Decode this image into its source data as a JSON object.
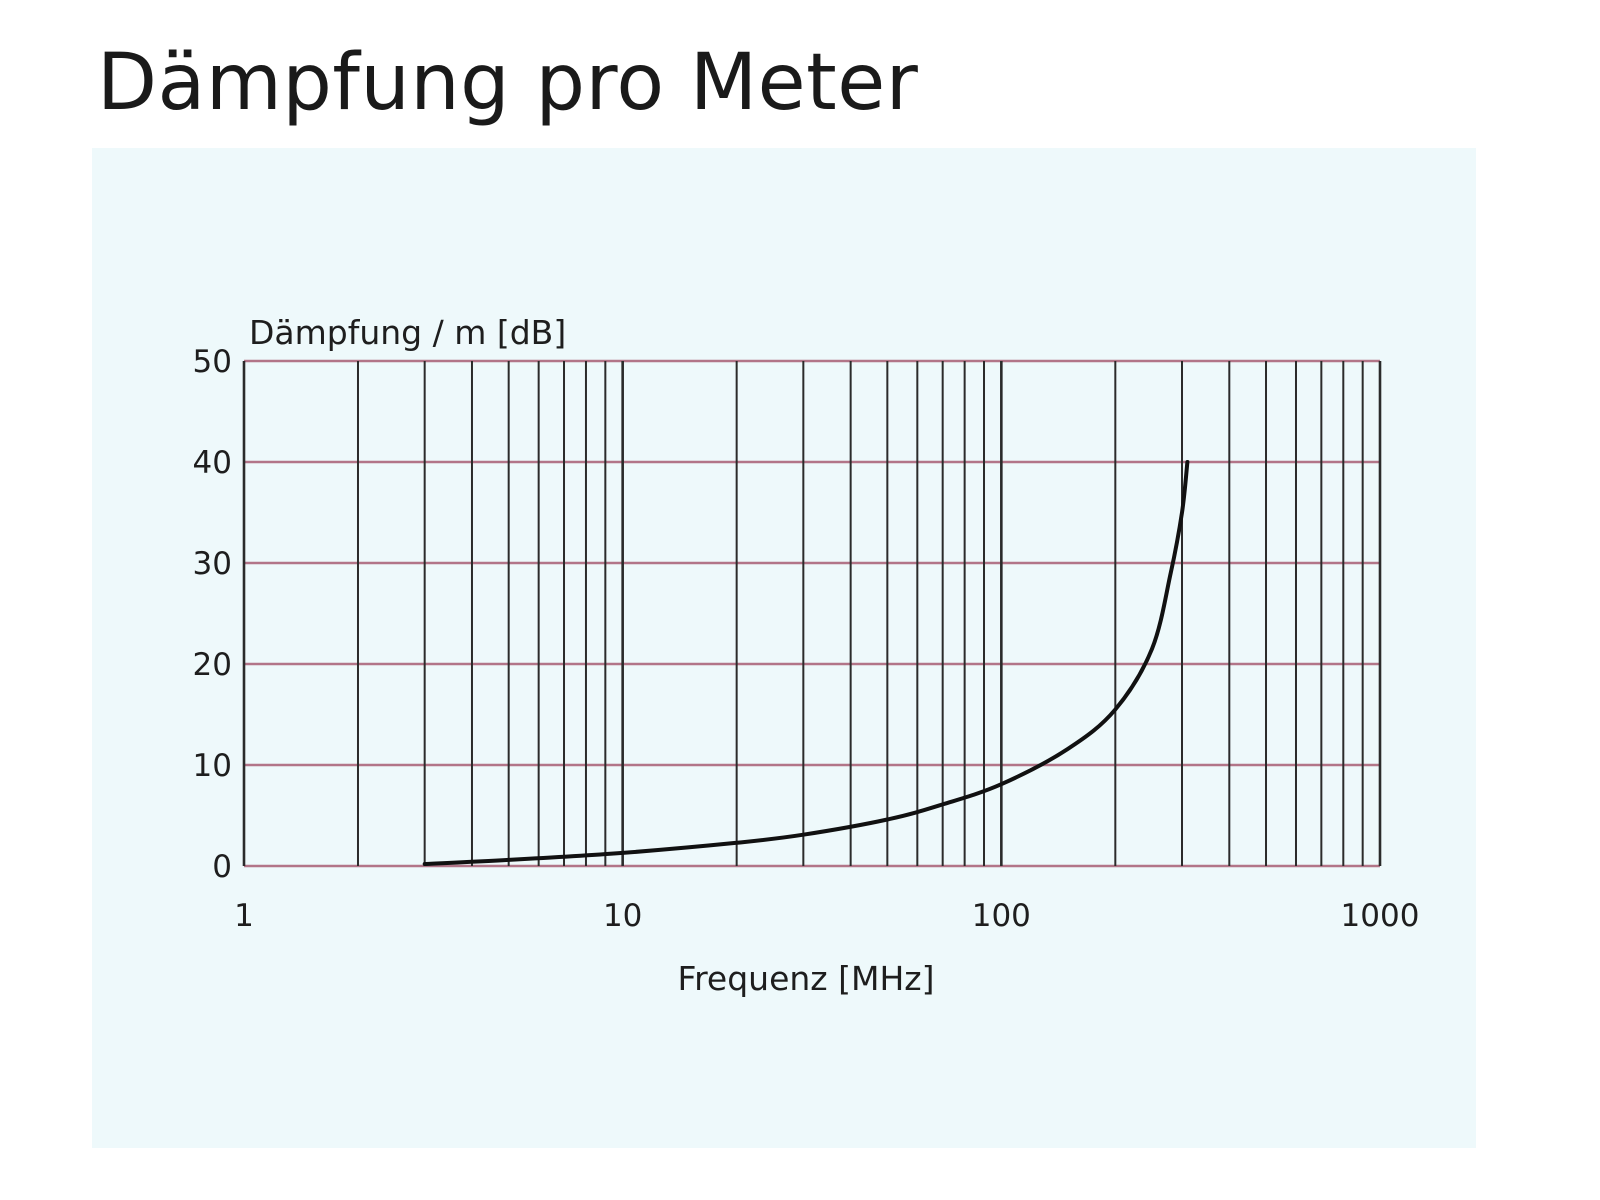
{
  "title": "Dämpfung pro Meter",
  "chart_data": {
    "type": "line",
    "xlabel": "Frequenz [MHz]",
    "ylabel": "Dämpfung / m [dB]",
    "x_scale": "log",
    "xlim": [
      1,
      1000
    ],
    "ylim": [
      0,
      50
    ],
    "x_ticks": [
      "1",
      "10",
      "100",
      "1000"
    ],
    "y_ticks": [
      "0",
      "10",
      "20",
      "30",
      "40",
      "50"
    ],
    "grid": true,
    "series": [
      {
        "x": [
          3,
          5,
          10,
          20,
          30,
          50,
          70,
          100,
          150,
          200,
          250,
          280,
          300,
          310
        ],
        "y": [
          0.2,
          0.6,
          1.3,
          2.3,
          3.1,
          4.6,
          6.1,
          8.1,
          11.6,
          15.5,
          21.5,
          29,
          35,
          40
        ]
      }
    ],
    "colors": {
      "curve": "#111111",
      "horizontal_grid": "#b27588",
      "vertical_grid": "#2b2b2b",
      "background": "#eef9fb"
    }
  }
}
